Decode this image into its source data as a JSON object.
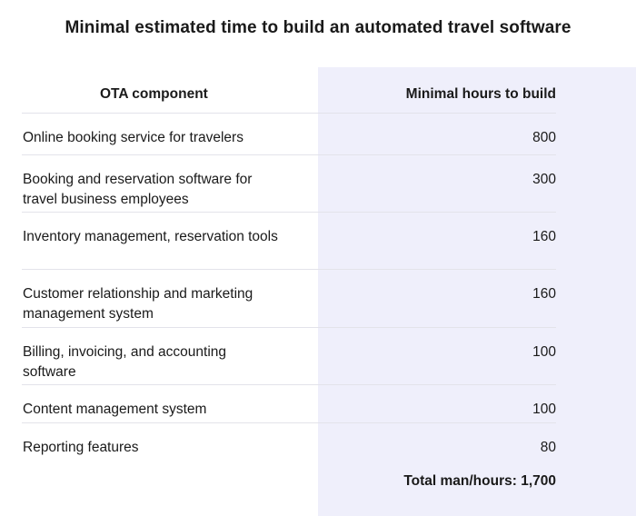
{
  "title": "Minimal estimated time to build an automated travel software",
  "table": {
    "headers": {
      "component": "OTA component",
      "hours": "Minimal hours to build"
    },
    "rows": [
      {
        "component": "Online booking service for travelers",
        "hours": "800"
      },
      {
        "component": "Booking and reservation software for travel business employees",
        "hours": "300"
      },
      {
        "component": "Inventory management, reservation tools",
        "hours": "160"
      },
      {
        "component": "Customer relationship and marketing management system",
        "hours": "160"
      },
      {
        "component": "Billing, invoicing, and accounting software",
        "hours": "100"
      },
      {
        "component": "Content management system",
        "hours": "100"
      },
      {
        "component": "Reporting features",
        "hours": "80"
      }
    ],
    "total": "Total man/hours: 1,700"
  },
  "colors": {
    "highlight_column": "#efeffb",
    "divider": "#e3e3ea",
    "text": "#1a1a1a"
  }
}
